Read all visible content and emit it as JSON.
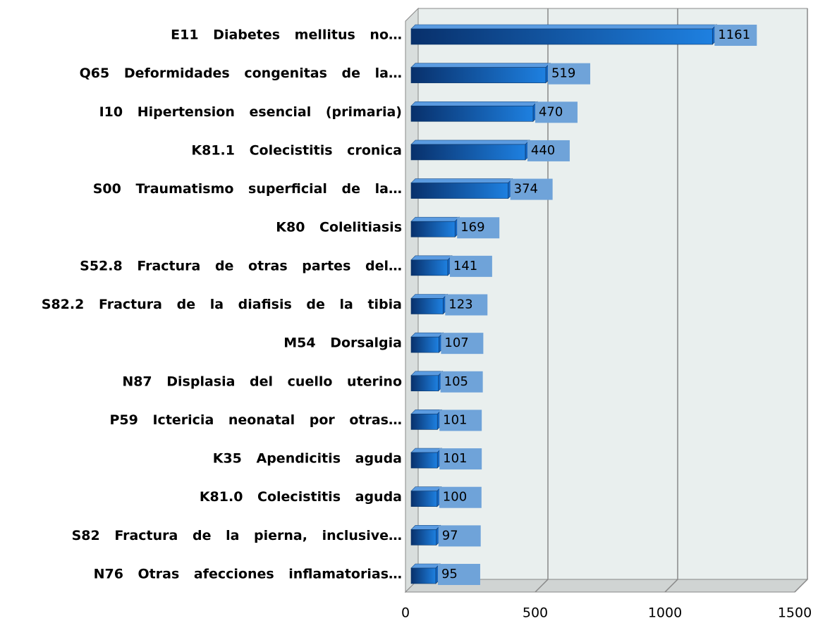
{
  "chart_data": {
    "type": "bar",
    "orientation": "horizontal",
    "categories": [
      "E11 Diabetes mellitus no…",
      "Q65 Deformidades congenitas de la…",
      "I10 Hipertension esencial (primaria)",
      "K81.1 Colecistitis cronica",
      "S00 Traumatismo superficial de la…",
      "K80 Colelitiasis",
      "S52.8 Fractura de otras partes del…",
      "S82.2 Fractura de la diafisis de la tibia",
      "M54 Dorsalgia",
      "N87 Displasia del cuello uterino",
      "P59 Ictericia neonatal por otras…",
      "K35 Apendicitis aguda",
      "K81.0 Colecistitis aguda",
      "S82 Fractura de la pierna, inclusive…",
      "N76 Otras afecciones inflamatorias…"
    ],
    "values": [
      1161,
      519,
      470,
      440,
      374,
      169,
      141,
      123,
      107,
      105,
      101,
      101,
      100,
      97,
      95
    ],
    "color": "#1565c0",
    "label_color": "#6fa3d9",
    "xlim": [
      0,
      1500
    ],
    "xticks": [
      0,
      500,
      1000,
      1500
    ],
    "grid": true
  }
}
